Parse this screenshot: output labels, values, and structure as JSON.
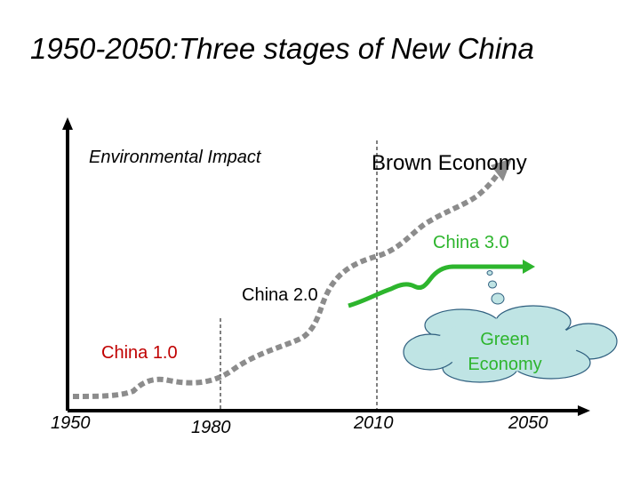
{
  "title": "1950-2050:Three stages of New China",
  "y_axis_label": "Environmental Impact",
  "labels": {
    "brown_economy": "Brown Economy",
    "china_1": "China 1.0",
    "china_2": "China 2.0",
    "china_3": "China 3.0",
    "green_economy": "Green Economy"
  },
  "x_ticks": [
    "1950",
    "1980",
    "2010",
    "2050"
  ],
  "colors": {
    "axis": "#000000",
    "brown_path": "#8c8c8c",
    "green_path": "#2db52d",
    "china_1_text": "#c00000",
    "cloud_fill": "#bfe4e4",
    "cloud_stroke": "#2f5f7f"
  }
}
